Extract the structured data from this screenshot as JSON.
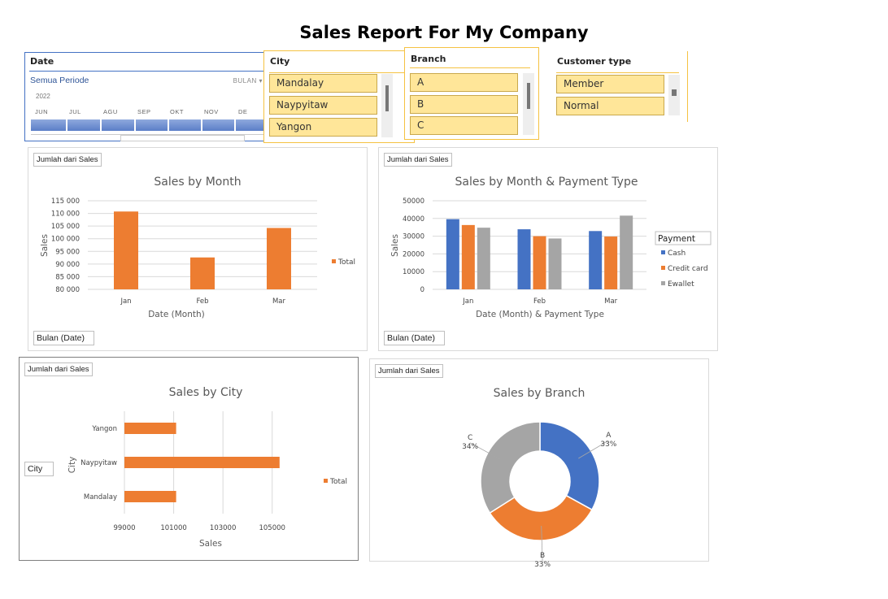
{
  "title": "Sales Report For My Company",
  "date_slicer": {
    "header": "Date",
    "period": "Semua Periode",
    "level": "BULAN",
    "year": "2022",
    "months": [
      "JUN",
      "JUL",
      "AGU",
      "SEP",
      "OKT",
      "NOV",
      "DE"
    ]
  },
  "city_slicer": {
    "header": "City",
    "items": [
      "Mandalay",
      "Naypyitaw",
      "Yangon"
    ]
  },
  "branch_slicer": {
    "header": "Branch",
    "items": [
      "A",
      "B",
      "C"
    ]
  },
  "customer_slicer": {
    "header": "Customer type",
    "items": [
      "Member",
      "Normal"
    ]
  },
  "colors": {
    "blue": "#4472c4",
    "orange": "#ed7d31",
    "gray": "#a5a5a5",
    "slicer_item": "#ffe699",
    "slicer_border": "#f5c242"
  },
  "charts": {
    "month": {
      "field_button": "Jumlah dari Sales",
      "axis_button": "Bulan (Date)",
      "title": "Sales by Month",
      "xlabel": "Date (Month)",
      "ylabel": "Sales",
      "legend": "Total",
      "y_ticks": [
        "115000",
        "110000",
        "105000",
        "100000",
        "95000",
        "90000",
        "85000",
        "80000"
      ]
    },
    "payment": {
      "field_button": "Jumlah dari Sales",
      "axis_button": "Bulan (Date)",
      "title": "Sales by Month & Payment Type",
      "xlabel": "Date (Month) & Payment Type",
      "ylabel": "Sales",
      "legend_title": "Payment",
      "y_ticks": [
        "50000",
        "40000",
        "30000",
        "20000",
        "10000",
        "0"
      ]
    },
    "city": {
      "field_button": "Jumlah dari Sales",
      "axis_button": "City",
      "title": "Sales by City",
      "xlabel": "Sales",
      "ylabel": "City",
      "legend": "Total",
      "x_ticks": [
        "99000",
        "101000",
        "103000",
        "105000"
      ]
    },
    "branch": {
      "field_button": "Jumlah dari Sales",
      "title": "Sales by Branch"
    }
  },
  "chart_data": [
    {
      "type": "bar",
      "title": "Sales by Month",
      "categories": [
        "Jan",
        "Feb",
        "Mar"
      ],
      "series": [
        {
          "name": "Total",
          "values": [
            110750,
            92600,
            104250
          ]
        }
      ],
      "xlabel": "Date (Month)",
      "ylabel": "Sales",
      "ylim": [
        80000,
        115000
      ],
      "grid": true,
      "legend": "right"
    },
    {
      "type": "bar",
      "title": "Sales by Month & Payment Type",
      "categories": [
        "Jan",
        "Feb",
        "Mar"
      ],
      "series": [
        {
          "name": "Cash",
          "values": [
            39600,
            33900,
            32900
          ]
        },
        {
          "name": "Credit card",
          "values": [
            36300,
            30000,
            29800
          ]
        },
        {
          "name": "Ewallet",
          "values": [
            34800,
            28700,
            41600
          ]
        }
      ],
      "xlabel": "Date (Month) & Payment Type",
      "ylabel": "Sales",
      "ylim": [
        0,
        50000
      ],
      "grid": true,
      "legend": "right"
    },
    {
      "type": "bar",
      "orientation": "horizontal",
      "title": "Sales by City",
      "categories": [
        "Mandalay",
        "Naypyitaw",
        "Yangon"
      ],
      "series": [
        {
          "name": "Total",
          "values": [
            101100,
            105300,
            101100
          ]
        }
      ],
      "xlabel": "Sales",
      "ylabel": "City",
      "xlim": [
        99000,
        106000
      ],
      "grid": true,
      "legend": "right"
    },
    {
      "type": "pie",
      "donut": true,
      "title": "Sales by Branch",
      "categories": [
        "A",
        "B",
        "C"
      ],
      "values": [
        33,
        33,
        34
      ],
      "labels": [
        "33%",
        "33%",
        "34%"
      ]
    }
  ]
}
